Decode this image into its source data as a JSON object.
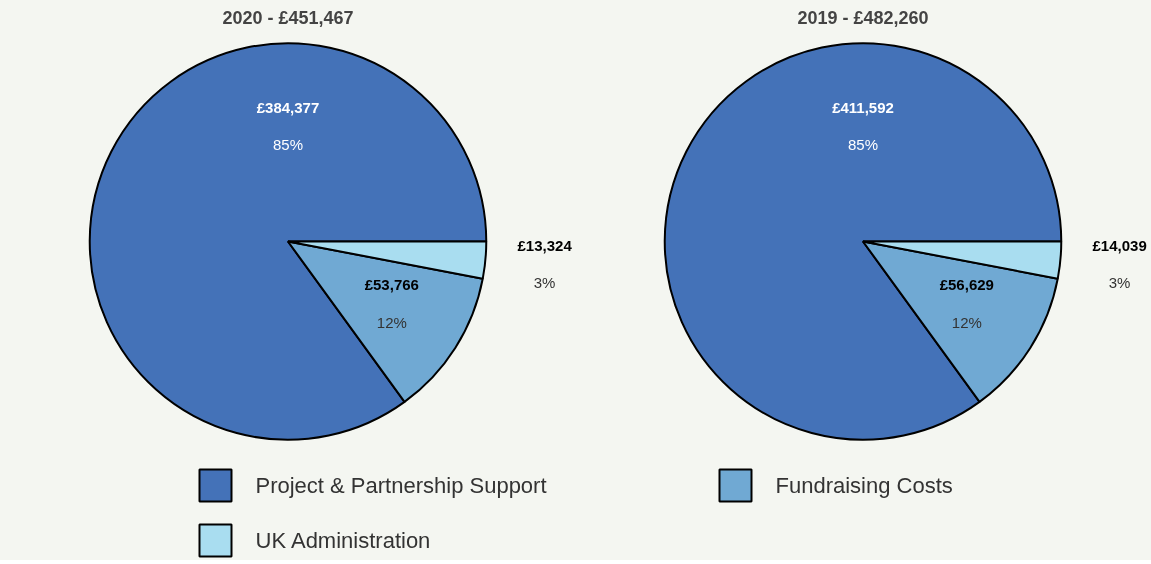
{
  "chart_data": [
    {
      "type": "pie",
      "title": "2020 - £451,467",
      "categories": [
        "Project & Partnership Support",
        "Fundraising Costs",
        "UK Administration"
      ],
      "values": [
        85,
        12,
        3
      ],
      "colors": [
        "#4472b8",
        "#70a9d3",
        "#a9ddf0"
      ],
      "value_labels": [
        "£384,377\n85%",
        "£53,766\n12%",
        "£13,324\n3%"
      ],
      "legend": "bottom"
    },
    {
      "type": "pie",
      "title": "2019 - £482,260",
      "values": [
        85,
        12,
        3
      ],
      "colors": [
        "#4472b8",
        "#70a9d3",
        "#a9ddf0"
      ],
      "value_labels": [
        "£411,592\n85%",
        "£56,629\n12%",
        "£14,039\n3%"
      ]
    }
  ]
}
